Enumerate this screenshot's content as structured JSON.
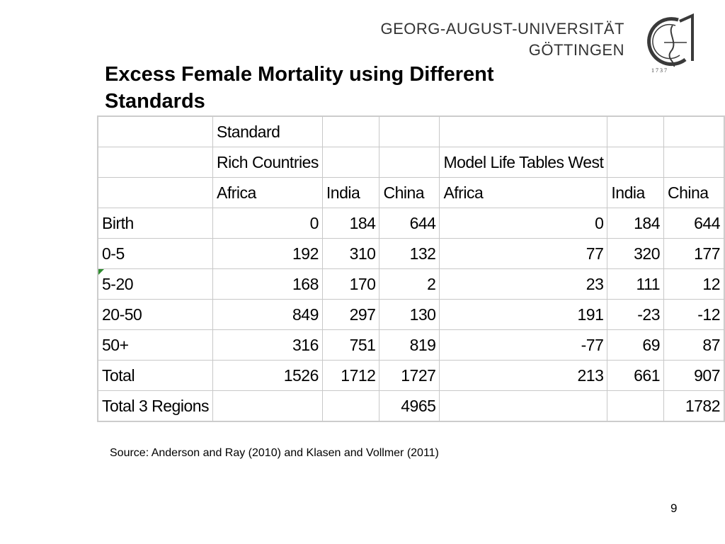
{
  "header": {
    "university_line1": "GEORG-AUGUST-UNIVERSITÄT",
    "university_line2": "GÖTTINGEN",
    "logo_year": "1 7 3 7"
  },
  "slide": {
    "title": "Excess Female Mortality using Different Standards",
    "source": "Source: Anderson and Ray (2010) and Klasen and Vollmer (2011)",
    "page_number": "9"
  },
  "table": {
    "standard_label": "Standard",
    "group_rich": "Rich Countries",
    "group_model": "Model Life Tables West",
    "columns": [
      "Africa",
      "India",
      "China",
      "Africa",
      "India",
      "China"
    ],
    "rows": [
      {
        "label": "Birth",
        "values": [
          "0",
          "184",
          "644",
          "0",
          "184",
          "644"
        ]
      },
      {
        "label": "0-5",
        "values": [
          "192",
          "310",
          "132",
          "77",
          "320",
          "177"
        ]
      },
      {
        "label": "5-20",
        "values": [
          "168",
          "170",
          "2",
          "23",
          "111",
          "12"
        ]
      },
      {
        "label": "20-50",
        "values": [
          "849",
          "297",
          "130",
          "191",
          "-23",
          "-12"
        ]
      },
      {
        "label": "50+",
        "values": [
          "316",
          "751",
          "819",
          "-77",
          "69",
          "87"
        ]
      },
      {
        "label": "Total",
        "values": [
          "1526",
          "1712",
          "1727",
          "213",
          "661",
          "907"
        ]
      }
    ],
    "total3": {
      "label": "Total 3 Regions",
      "rich_value": "4965",
      "model_value": "1782"
    }
  },
  "colors": {
    "flag": "#2e8b2e",
    "grid": "#c8c8c8",
    "logo": "#3a3a3a"
  }
}
